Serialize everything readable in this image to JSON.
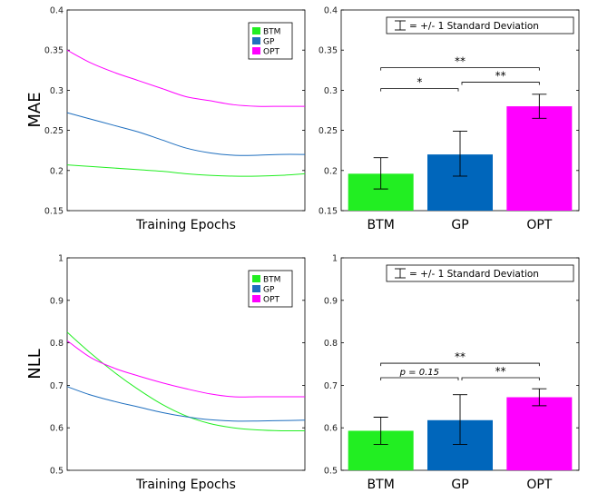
{
  "chart_data": [
    {
      "id": "mae_line",
      "type": "line",
      "ylabel": "",
      "xlabel": "Training Epochs",
      "ylim": [
        0.15,
        0.4
      ],
      "yticks": [
        0.15,
        0.2,
        0.25,
        0.3,
        0.35,
        0.4
      ],
      "xlim": [
        0,
        100
      ],
      "legend": "top-right",
      "series": [
        {
          "name": "BTM",
          "color": "#22ee22",
          "x": [
            0,
            10,
            20,
            30,
            40,
            50,
            60,
            70,
            80,
            90,
            100
          ],
          "values": [
            0.207,
            0.205,
            0.203,
            0.201,
            0.199,
            0.196,
            0.194,
            0.193,
            0.193,
            0.194,
            0.196
          ]
        },
        {
          "name": "GP",
          "color": "#1f6fbf",
          "x": [
            0,
            10,
            20,
            30,
            40,
            50,
            60,
            70,
            80,
            90,
            100
          ],
          "values": [
            0.272,
            0.264,
            0.256,
            0.248,
            0.238,
            0.228,
            0.222,
            0.219,
            0.219,
            0.22,
            0.22
          ]
        },
        {
          "name": "OPT",
          "color": "#ff00ff",
          "x": [
            0,
            10,
            20,
            30,
            40,
            50,
            60,
            70,
            80,
            90,
            100
          ],
          "values": [
            0.35,
            0.334,
            0.322,
            0.312,
            0.302,
            0.292,
            0.287,
            0.282,
            0.28,
            0.28,
            0.28
          ]
        }
      ]
    },
    {
      "id": "mae_bar",
      "type": "bar",
      "ylim": [
        0.15,
        0.4
      ],
      "yticks": [
        0.15,
        0.2,
        0.25,
        0.3,
        0.35,
        0.4
      ],
      "categories": [
        "BTM",
        "GP",
        "OPT"
      ],
      "colors": [
        "#22ee22",
        "#0066bb",
        "#ff00ff"
      ],
      "values": [
        0.196,
        0.22,
        0.28
      ],
      "err_low": [
        0.177,
        0.193,
        0.265
      ],
      "err_high": [
        0.216,
        0.249,
        0.295
      ],
      "legend_text": "= +/- 1 Standard Deviation",
      "brackets": [
        {
          "from": 0,
          "to": 1,
          "y": 0.302,
          "label": "*"
        },
        {
          "from": 1,
          "to": 2,
          "y": 0.31,
          "label": "**"
        },
        {
          "from": 0,
          "to": 2,
          "y": 0.328,
          "label": "**"
        }
      ]
    },
    {
      "id": "nll_line",
      "type": "line",
      "ylabel": "",
      "xlabel": "Training Epochs",
      "ylim": [
        0.5,
        1.0
      ],
      "yticks": [
        0.5,
        0.6,
        0.7,
        0.8,
        0.9,
        1
      ],
      "xlim": [
        0,
        100
      ],
      "legend": "top-right",
      "series": [
        {
          "name": "BTM",
          "color": "#22ee22",
          "x": [
            0,
            10,
            20,
            30,
            40,
            50,
            60,
            70,
            80,
            90,
            100
          ],
          "values": [
            0.825,
            0.775,
            0.73,
            0.69,
            0.655,
            0.628,
            0.61,
            0.6,
            0.595,
            0.593,
            0.593
          ]
        },
        {
          "name": "GP",
          "color": "#1f6fbf",
          "x": [
            0,
            10,
            20,
            30,
            40,
            50,
            60,
            70,
            80,
            90,
            100
          ],
          "values": [
            0.697,
            0.677,
            0.662,
            0.649,
            0.636,
            0.626,
            0.619,
            0.616,
            0.616,
            0.617,
            0.618
          ]
        },
        {
          "name": "OPT",
          "color": "#ff00ff",
          "x": [
            0,
            10,
            20,
            30,
            40,
            50,
            60,
            70,
            80,
            90,
            100
          ],
          "values": [
            0.805,
            0.765,
            0.74,
            0.722,
            0.706,
            0.692,
            0.68,
            0.673,
            0.673,
            0.673,
            0.673
          ]
        }
      ]
    },
    {
      "id": "nll_bar",
      "type": "bar",
      "ylim": [
        0.5,
        1.0
      ],
      "yticks": [
        0.5,
        0.6,
        0.7,
        0.8,
        0.9,
        1
      ],
      "categories": [
        "BTM",
        "GP",
        "OPT"
      ],
      "colors": [
        "#22ee22",
        "#0066bb",
        "#ff00ff"
      ],
      "values": [
        0.593,
        0.618,
        0.672
      ],
      "err_low": [
        0.561,
        0.561,
        0.652
      ],
      "err_high": [
        0.625,
        0.678,
        0.692
      ],
      "legend_text": "= +/- 1 Standard Deviation",
      "brackets": [
        {
          "from": 0,
          "to": 1,
          "y": 0.718,
          "label": "p = 0.15"
        },
        {
          "from": 1,
          "to": 2,
          "y": 0.718,
          "label": "**"
        },
        {
          "from": 0,
          "to": 2,
          "y": 0.752,
          "label": "**"
        }
      ]
    }
  ],
  "row_labels": [
    "MAE",
    "NLL"
  ]
}
